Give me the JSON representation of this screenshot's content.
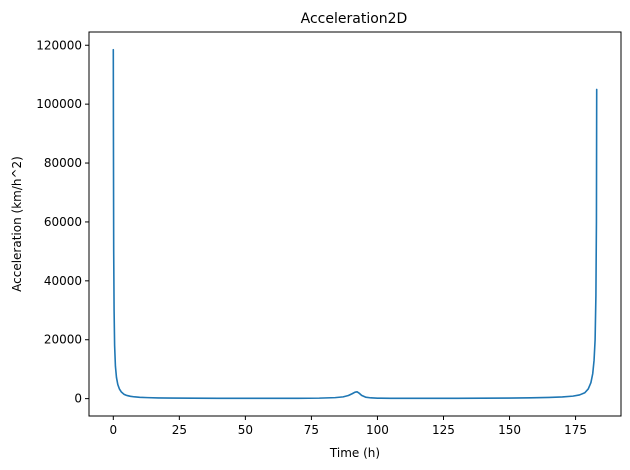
{
  "chart_data": {
    "type": "line",
    "title": "Acceleration2D",
    "xlabel": "Time (h)",
    "ylabel": "Acceleration (km/h^2)",
    "xlim": [
      -9.2,
      192.2
    ],
    "ylim": [
      -5900,
      124500
    ],
    "xticks": [
      0,
      25,
      50,
      75,
      100,
      125,
      150,
      175
    ],
    "yticks": [
      0,
      20000,
      40000,
      60000,
      80000,
      100000,
      120000
    ],
    "xtick_labels": [
      "0",
      "25",
      "50",
      "75",
      "100",
      "125",
      "150",
      "175"
    ],
    "ytick_labels": [
      "0",
      "20000",
      "40000",
      "60000",
      "80000",
      "100000",
      "120000"
    ],
    "grid": false,
    "line_color": "#1f77b4",
    "series": [
      {
        "x": [
          0,
          0.05,
          0.15,
          0.3,
          0.5,
          0.8,
          1.2,
          1.7,
          2.3,
          3,
          4,
          5,
          6.5,
          8,
          10,
          13,
          17,
          22,
          30,
          40,
          50,
          60,
          70,
          78,
          84,
          87,
          89,
          90.5,
          91.5,
          92.3,
          93,
          94,
          95.5,
          97.5,
          100,
          105,
          112,
          120,
          130,
          140,
          150,
          158,
          165,
          170,
          174,
          176.5,
          178.5,
          179.8,
          180.8,
          181.5,
          182,
          182.4,
          182.7,
          182.9,
          183
        ],
        "y": [
          118500,
          90000,
          50000,
          30000,
          18000,
          11000,
          7200,
          4800,
          3300,
          2300,
          1500,
          1100,
          780,
          600,
          460,
          340,
          250,
          190,
          140,
          110,
          100,
          100,
          110,
          170,
          340,
          600,
          1050,
          1700,
          2200,
          2300,
          1900,
          1100,
          500,
          260,
          160,
          110,
          90,
          95,
          110,
          140,
          200,
          290,
          420,
          580,
          850,
          1250,
          2000,
          3300,
          5400,
          8500,
          13000,
          20000,
          35000,
          60000,
          105000
        ]
      }
    ]
  }
}
